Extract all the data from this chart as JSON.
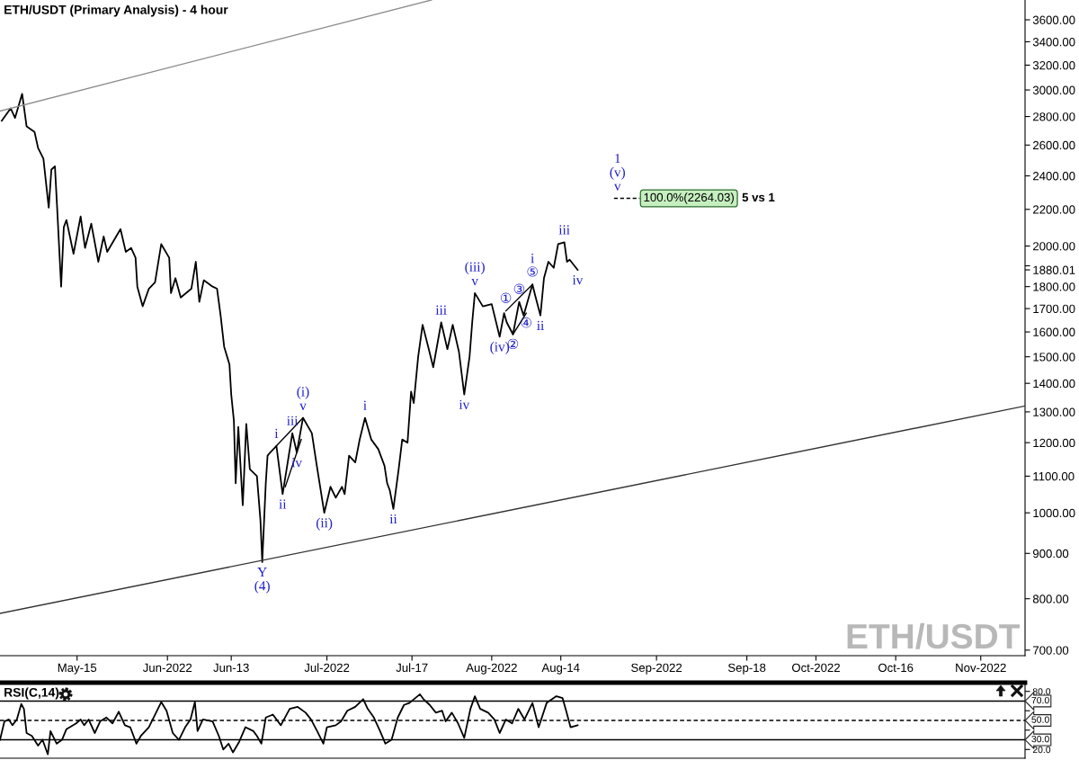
{
  "chart_data": [
    {
      "type": "line",
      "title": "ETH/USDT (Primary Analysis) - 4 hour",
      "log": true,
      "xlim": [
        "2022-04-30T12:00",
        "2022-11-09T08:00"
      ],
      "ylim": [
        690,
        3790
      ],
      "xticks": [
        {
          "value": "2022-05-15",
          "label": "May-15"
        },
        {
          "value": "2022-06-01",
          "label": "Jun-2022"
        },
        {
          "value": "2022-06-13",
          "label": "Jun-13"
        },
        {
          "value": "2022-07-01",
          "label": "Jul-2022"
        },
        {
          "value": "2022-07-17",
          "label": "Jul-17"
        },
        {
          "value": "2022-08-01",
          "label": "Aug-2022"
        },
        {
          "value": "2022-08-14",
          "label": "Aug-14"
        },
        {
          "value": "2022-09-01",
          "label": "Sep-2022"
        },
        {
          "value": "2022-09-18",
          "label": "Sep-18"
        },
        {
          "value": "2022-10-01",
          "label": "Oct-2022"
        },
        {
          "value": "2022-10-16",
          "label": "Oct-16"
        },
        {
          "value": "2022-11-01",
          "label": "Nov-2022"
        }
      ],
      "yticks": [
        {
          "value": 700,
          "label": "700.00"
        },
        {
          "value": 800,
          "label": "800.00"
        },
        {
          "value": 900,
          "label": "900.00"
        },
        {
          "value": 1000,
          "label": "1000.00"
        },
        {
          "value": 1100,
          "label": "1100.00"
        },
        {
          "value": 1200,
          "label": "1200.00"
        },
        {
          "value": 1300,
          "label": "1300.00"
        },
        {
          "value": 1400,
          "label": "1400.00"
        },
        {
          "value": 1500,
          "label": "1500.00"
        },
        {
          "value": 1600,
          "label": "1600.00"
        },
        {
          "value": 1700,
          "label": "1700.00"
        },
        {
          "value": 1800,
          "label": "1800.00"
        },
        {
          "value": 1880.01,
          "label": "1880.01"
        },
        {
          "value": 1900,
          "label": null
        },
        {
          "value": 2000,
          "label": "2000.00"
        },
        {
          "value": 2200,
          "label": "2200.00"
        },
        {
          "value": 2400,
          "label": "2400.00"
        },
        {
          "value": 2600,
          "label": "2600.00"
        },
        {
          "value": 2800,
          "label": "2800.00"
        },
        {
          "value": 3000,
          "label": "3000.00"
        },
        {
          "value": 3200,
          "label": "3200.00"
        },
        {
          "value": 3400,
          "label": "3400.00"
        },
        {
          "value": 3600,
          "label": "3600.00"
        }
      ],
      "series": [
        {
          "color": "#000000",
          "x": [
            "2022-04-30T20:00",
            "2022-05-02T12:00",
            "2022-05-03T08:00",
            "2022-05-04T16:00",
            "2022-05-05T12:00",
            "2022-05-07T00:00",
            "2022-05-07T16:00",
            "2022-05-08T16:00",
            "2022-05-09T16:00",
            "2022-05-10T04:00",
            "2022-05-10T20:00",
            "2022-05-11T08:00",
            "2022-05-12T00:00",
            "2022-05-12T12:00",
            "2022-05-13T00:00",
            "2022-05-14T08:00",
            "2022-05-15T16:00",
            "2022-05-16T12:00",
            "2022-05-17T16:00",
            "2022-05-19T00:00",
            "2022-05-20T00:00",
            "2022-05-20T16:00",
            "2022-05-23T04:00",
            "2022-05-24T04:00",
            "2022-05-25T04:00",
            "2022-05-26T00:00",
            "2022-05-26T08:00",
            "2022-05-27T08:00",
            "2022-05-28T12:00",
            "2022-05-29T16:00",
            "2022-05-30T20:00",
            "2022-06-01T08:00",
            "2022-06-01T16:00",
            "2022-06-02T12:00",
            "2022-06-03T12:00",
            "2022-06-05T12:00",
            "2022-06-06T08:00",
            "2022-06-07T00:00",
            "2022-06-07T20:00",
            "2022-06-09T12:00",
            "2022-06-10T08:00",
            "2022-06-11T00:00",
            "2022-06-11T16:00",
            "2022-06-12T16:00",
            "2022-06-13T00:00",
            "2022-06-13T12:00",
            "2022-06-13T20:00",
            "2022-06-14T08:00",
            "2022-06-15T04:00",
            "2022-06-15T20:00",
            "2022-06-16T12:00",
            "2022-06-17T20:00",
            "2022-06-18T12:00",
            "2022-06-18T20:00",
            "2022-06-19T12:00",
            "2022-06-19T20:00",
            "2022-06-20T08:00",
            "2022-06-21T12:00",
            "2022-06-22T16:00",
            "2022-06-24T12:00",
            "2022-06-25T08:00",
            "2022-06-26T12:00",
            "2022-06-28T04:00",
            "2022-06-29T00:00",
            "2022-06-30T12:00",
            "2022-07-01T16:00",
            "2022-07-02T16:00",
            "2022-07-03T20:00",
            "2022-07-04T08:00",
            "2022-07-05T04:00",
            "2022-07-06T08:00",
            "2022-07-07T04:00",
            "2022-07-08T04:00",
            "2022-07-09T08:00",
            "2022-07-10T16:00",
            "2022-07-11T20:00",
            "2022-07-12T08:00",
            "2022-07-12T20:00",
            "2022-07-13T12:00",
            "2022-07-14T12:00",
            "2022-07-15T04:00",
            "2022-07-16T04:00",
            "2022-07-16T20:00",
            "2022-07-17T08:00",
            "2022-07-18T04:00",
            "2022-07-19T00:00",
            "2022-07-20T04:00",
            "2022-07-21T00:00",
            "2022-07-22T12:00",
            "2022-07-23T16:00",
            "2022-07-24T16:00",
            "2022-07-25T20:00",
            "2022-07-26T20:00",
            "2022-07-27T20:00",
            "2022-07-28T08:00",
            "2022-07-28T20:00",
            "2022-07-30T08:00",
            "2022-08-01T00:00",
            "2022-08-02T12:00",
            "2022-08-03T08:00",
            "2022-08-03T20:00",
            "2022-08-05T00:00",
            "2022-08-06T04:00",
            "2022-08-07T00:00",
            "2022-08-08T16:00",
            "2022-08-09T04:00",
            "2022-08-10T04:00",
            "2022-08-10T20:00",
            "2022-08-11T16:00",
            "2022-08-12T16:00",
            "2022-08-13T12:00",
            "2022-08-14T16:00",
            "2022-08-15T04:00",
            "2022-08-15T16:00",
            "2022-08-17T04:00"
          ],
          "values": [
            2770,
            2860,
            2790,
            2970,
            2730,
            2690,
            2580,
            2510,
            2210,
            2440,
            2460,
            2160,
            1800,
            2100,
            2140,
            1960,
            2160,
            1990,
            2120,
            1920,
            2050,
            1970,
            2090,
            1970,
            1990,
            1940,
            1800,
            1710,
            1790,
            1820,
            2010,
            1940,
            1770,
            1840,
            1750,
            1790,
            1920,
            1730,
            1830,
            1800,
            1790,
            1670,
            1540,
            1470,
            1360,
            1270,
            1080,
            1250,
            1020,
            1260,
            1120,
            1100,
            980,
            880,
            1080,
            1160,
            1170,
            1190,
            1050,
            1230,
            1170,
            1280,
            1230,
            1140,
            1000,
            1070,
            1040,
            1070,
            1050,
            1160,
            1140,
            1210,
            1280,
            1210,
            1180,
            1130,
            1080,
            1060,
            1010,
            1120,
            1210,
            1200,
            1370,
            1330,
            1500,
            1630,
            1530,
            1460,
            1640,
            1530,
            1630,
            1520,
            1360,
            1500,
            1640,
            1770,
            1710,
            1720,
            1580,
            1680,
            1640,
            1590,
            1730,
            1670,
            1810,
            1760,
            1670,
            1840,
            1920,
            1890,
            2010,
            2020,
            1920,
            1930,
            1880
          ]
        },
        {
          "color": "#8c8c8c",
          "x": [
            "2022-04-30T12:00",
            "2022-07-20T16:00"
          ],
          "values": [
            2840,
            3790
          ]
        },
        {
          "color": "#333333",
          "x": [
            "2022-04-30T12:00",
            "2022-11-09T08:00"
          ],
          "values": [
            770,
            1320
          ]
        },
        {
          "color": "#000000",
          "x": [
            "2022-06-21T12:00",
            "2022-06-26T12:00"
          ],
          "values": [
            1190,
            1280
          ]
        },
        {
          "color": "#000000",
          "x": [
            "2022-06-23T04:00",
            "2022-06-26T04:00"
          ],
          "values": [
            1070,
            1210
          ]
        },
        {
          "color": "#000000",
          "x": [
            "2022-08-03T16:00",
            "2022-08-08T16:00"
          ],
          "values": [
            1690,
            1810
          ]
        },
        {
          "color": "#000000",
          "x": [
            "2022-08-05T00:00",
            "2022-08-07T12:00"
          ],
          "values": [
            1590,
            1680
          ]
        },
        {
          "name": "5 vs 1",
          "color": "#000000",
          "line_style": "dashed",
          "x": [
            "2022-08-24T00:00",
            "2022-08-28T20:00"
          ],
          "values": [
            2264.03,
            2264.03
          ],
          "value_labels": [
            null,
            "100.0%(2264.03)"
          ]
        }
      ],
      "annotations": [
        "ETH/USDT",
        {
          "text": "v",
          "x": "2022-06-26T12:00",
          "y": 1280
        },
        {
          "text": "(i)",
          "x": "2022-06-26T12:00",
          "y": 1280
        },
        {
          "text": "iii",
          "x": "2022-06-24T12:00",
          "y": 1230
        },
        {
          "text": "i",
          "x": "2022-06-21T12:00",
          "y": 1190
        },
        {
          "text": "iv",
          "x": "2022-06-25T08:00",
          "y": 1170
        },
        {
          "text": "ii",
          "x": "2022-06-22T16:00",
          "y": 1050
        },
        {
          "text": "(ii)",
          "x": "2022-06-30T12:00",
          "y": 1000
        },
        {
          "text": "i",
          "x": "2022-07-08T04:00",
          "y": 1280
        },
        {
          "text": "ii",
          "x": "2022-07-13T12:00",
          "y": 1010
        },
        {
          "text": "iii",
          "x": "2022-07-22T12:00",
          "y": 1640
        },
        {
          "text": "iv",
          "x": "2022-07-26T20:00",
          "y": 1360
        },
        {
          "text": "v",
          "x": "2022-07-28T20:00",
          "y": 1770
        },
        {
          "text": "(iii)",
          "x": "2022-07-28T20:00",
          "y": 1770
        },
        {
          "text": "(iv)",
          "x": "2022-08-02T12:00",
          "y": 1580
        },
        {
          "text": "①",
          "x": "2022-08-03T16:00",
          "y": 1690
        },
        {
          "text": "②",
          "x": "2022-08-05T00:00",
          "y": 1590
        },
        {
          "text": "③",
          "x": "2022-08-06T04:00",
          "y": 1730
        },
        {
          "text": "④",
          "x": "2022-08-07T12:00",
          "y": 1680
        },
        {
          "text": "⑤",
          "x": "2022-08-08T16:00",
          "y": 1810
        },
        {
          "text": "i",
          "x": "2022-08-08T16:00",
          "y": 1810
        },
        {
          "text": "ii",
          "x": "2022-08-10T04:00",
          "y": 1670
        },
        {
          "text": "iii",
          "x": "2022-08-14T16:00",
          "y": 2020
        },
        {
          "text": "iv",
          "x": "2022-08-17T04:00",
          "y": 1880
        },
        {
          "text": "v",
          "x": "2022-08-24T16:00",
          "y": 2264.03
        },
        {
          "text": "(v)",
          "x": "2022-08-24T16:00",
          "y": 2264.03
        },
        {
          "text": "1",
          "x": "2022-08-24T16:00",
          "y": 2264.03
        },
        {
          "text": "Y",
          "x": "2022-06-18T20:00",
          "y": 880
        },
        {
          "text": "(4)",
          "x": "2022-06-18T20:00",
          "y": 880
        }
      ]
    },
    {
      "type": "line",
      "title": "RSI(C,14)",
      "tick_labels": "y",
      "xlim": [
        "2022-04-30T12:00",
        "2022-11-09T08:00"
      ],
      "ylim": [
        11,
        89
      ],
      "yticks": [
        {
          "value": 20,
          "label": "20.0"
        },
        {
          "value": 40,
          "label": null
        },
        {
          "value": 60,
          "label": null
        },
        {
          "value": 80,
          "label": "80.0"
        }
      ],
      "ref_lines": [
        {
          "axis": "y",
          "value": 70,
          "label": "70.0",
          "color": "#000000",
          "line_style": "solid"
        },
        {
          "axis": "y",
          "value": 50,
          "label": "50.0",
          "color": "#000000",
          "line_style": "dashed"
        },
        {
          "axis": "y",
          "value": 30,
          "label": "30.0",
          "color": "#000000",
          "line_style": "solid"
        }
      ],
      "series": [
        {
          "color": "#000000",
          "x": [
            "2022-04-30T12:00",
            "2022-05-01T08:00",
            "2022-05-02T04:00",
            "2022-05-02T20:00",
            "2022-05-03T16:00",
            "2022-05-04T12:00",
            "2022-05-05T00:00",
            "2022-05-05T12:00",
            "2022-05-06T12:00",
            "2022-05-07T16:00",
            "2022-05-08T12:00",
            "2022-05-09T12:00",
            "2022-05-10T00:00",
            "2022-05-11T04:00",
            "2022-05-12T04:00",
            "2022-05-13T00:00",
            "2022-05-14T20:00",
            "2022-05-15T16:00",
            "2022-05-16T08:00",
            "2022-05-17T04:00",
            "2022-05-18T08:00",
            "2022-05-19T08:00",
            "2022-05-20T12:00",
            "2022-05-21T16:00",
            "2022-05-22T20:00",
            "2022-05-24T00:00",
            "2022-05-25T00:00",
            "2022-05-26T04:00",
            "2022-05-27T00:00",
            "2022-05-28T12:00",
            "2022-05-29T16:00",
            "2022-05-30T20:00",
            "2022-05-31T20:00",
            "2022-06-02T00:00",
            "2022-06-03T04:00",
            "2022-06-04T08:00",
            "2022-06-05T08:00",
            "2022-06-06T04:00",
            "2022-06-06T16:00",
            "2022-06-07T16:00",
            "2022-06-09T12:00",
            "2022-06-10T16:00",
            "2022-06-11T12:00",
            "2022-06-12T12:00",
            "2022-06-13T08:00",
            "2022-06-14T12:00",
            "2022-06-15T16:00",
            "2022-06-17T04:00",
            "2022-06-17T20:00",
            "2022-06-18T16:00",
            "2022-06-19T12:00",
            "2022-06-20T20:00",
            "2022-06-22T08:00",
            "2022-06-24T00:00",
            "2022-06-25T12:00",
            "2022-06-27T00:00",
            "2022-06-28T00:00",
            "2022-06-29T04:00",
            "2022-06-30T08:00",
            "2022-07-01T00:00",
            "2022-07-02T16:00",
            "2022-07-03T16:00",
            "2022-07-04T20:00",
            "2022-07-06T08:00",
            "2022-07-07T20:00",
            "2022-07-08T16:00",
            "2022-07-09T20:00",
            "2022-07-11T00:00",
            "2022-07-12T00:00",
            "2022-07-13T04:00",
            "2022-07-14T08:00",
            "2022-07-15T12:00",
            "2022-07-16T12:00",
            "2022-07-18T12:00",
            "2022-07-19T04:00",
            "2022-07-20T08:00",
            "2022-07-21T12:00",
            "2022-07-22T16:00",
            "2022-07-23T08:00",
            "2022-07-24T12:00",
            "2022-07-25T16:00",
            "2022-07-26T20:00",
            "2022-07-28T00:00",
            "2022-07-28T20:00",
            "2022-07-29T20:00",
            "2022-07-31T08:00",
            "2022-08-01T12:00",
            "2022-08-02T12:00",
            "2022-08-03T16:00",
            "2022-08-04T20:00",
            "2022-08-06T00:00",
            "2022-08-07T04:00",
            "2022-08-08T16:00",
            "2022-08-09T20:00",
            "2022-08-11T08:00",
            "2022-08-13T04:00",
            "2022-08-14T08:00",
            "2022-08-15T00:00",
            "2022-08-15T20:00",
            "2022-08-17T04:00"
          ],
          "values": [
            30,
            49,
            51,
            45,
            51,
            67,
            62,
            37,
            34,
            24,
            30,
            15,
            39,
            26,
            30,
            41,
            47,
            51,
            45,
            51,
            37,
            49,
            53,
            47,
            59,
            45,
            43,
            26,
            34,
            43,
            56,
            69,
            60,
            37,
            30,
            43,
            51,
            69,
            39,
            51,
            49,
            34,
            20,
            26,
            17,
            28,
            43,
            39,
            34,
            26,
            53,
            56,
            45,
            62,
            64,
            58,
            51,
            39,
            26,
            43,
            45,
            49,
            60,
            64,
            72,
            62,
            53,
            39,
            26,
            30,
            53,
            66,
            68,
            77,
            72,
            66,
            58,
            60,
            49,
            58,
            47,
            32,
            62,
            75,
            62,
            58,
            51,
            37,
            51,
            47,
            62,
            51,
            68,
            43,
            68,
            75,
            73,
            60,
            43,
            45
          ]
        }
      ]
    }
  ]
}
